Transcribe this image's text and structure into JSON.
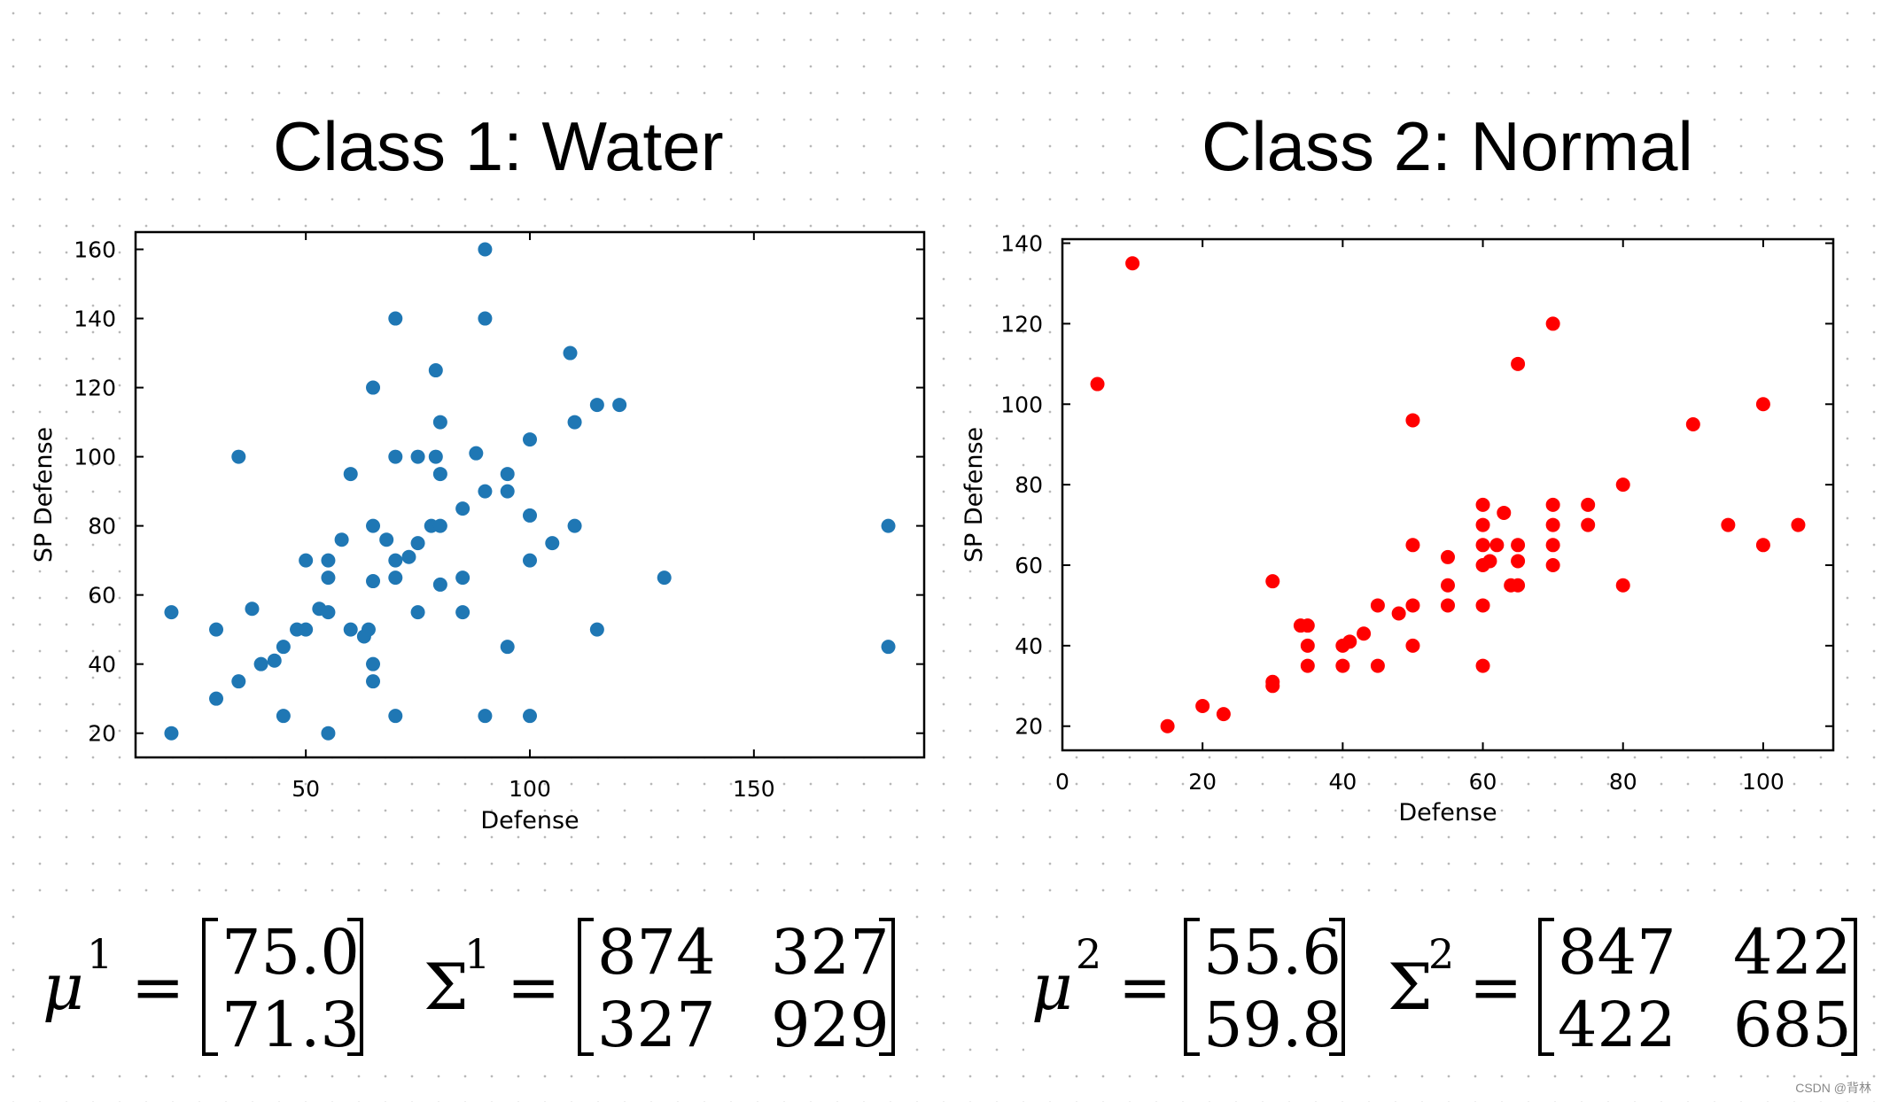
{
  "chart_data": [
    {
      "type": "scatter",
      "title": "Class 1: Water",
      "xlabel": "Defense",
      "ylabel": "SP Defense",
      "xlim": [
        12,
        188
      ],
      "ylim": [
        13,
        165
      ],
      "xticks": [
        50,
        100,
        150
      ],
      "yticks": [
        20,
        40,
        60,
        80,
        100,
        120,
        140,
        160
      ],
      "color": "#1f77b4",
      "grid": false,
      "points": [
        [
          20,
          55
        ],
        [
          20,
          20
        ],
        [
          30,
          50
        ],
        [
          30,
          30
        ],
        [
          35,
          100
        ],
        [
          35,
          35
        ],
        [
          38,
          56
        ],
        [
          40,
          40
        ],
        [
          43,
          41
        ],
        [
          45,
          45
        ],
        [
          45,
          25
        ],
        [
          48,
          50
        ],
        [
          50,
          70
        ],
        [
          50,
          50
        ],
        [
          53,
          56
        ],
        [
          55,
          70
        ],
        [
          55,
          65
        ],
        [
          55,
          55
        ],
        [
          55,
          20
        ],
        [
          58,
          76
        ],
        [
          60,
          95
        ],
        [
          60,
          50
        ],
        [
          63,
          48
        ],
        [
          64,
          50
        ],
        [
          65,
          120
        ],
        [
          65,
          80
        ],
        [
          65,
          64
        ],
        [
          65,
          40
        ],
        [
          65,
          35
        ],
        [
          68,
          76
        ],
        [
          70,
          140
        ],
        [
          70,
          100
        ],
        [
          70,
          70
        ],
        [
          70,
          65
        ],
        [
          70,
          25
        ],
        [
          73,
          71
        ],
        [
          75,
          100
        ],
        [
          75,
          75
        ],
        [
          75,
          55
        ],
        [
          78,
          80
        ],
        [
          79,
          125
        ],
        [
          79,
          100
        ],
        [
          80,
          110
        ],
        [
          80,
          95
        ],
        [
          80,
          80
        ],
        [
          80,
          63
        ],
        [
          85,
          85
        ],
        [
          85,
          65
        ],
        [
          85,
          55
        ],
        [
          88,
          101
        ],
        [
          90,
          160
        ],
        [
          90,
          140
        ],
        [
          90,
          90
        ],
        [
          90,
          25
        ],
        [
          95,
          95
        ],
        [
          95,
          90
        ],
        [
          95,
          45
        ],
        [
          100,
          105
        ],
        [
          100,
          83
        ],
        [
          100,
          70
        ],
        [
          100,
          25
        ],
        [
          105,
          75
        ],
        [
          109,
          130
        ],
        [
          110,
          110
        ],
        [
          110,
          80
        ],
        [
          115,
          115
        ],
        [
          115,
          50
        ],
        [
          120,
          115
        ],
        [
          130,
          65
        ],
        [
          180,
          80
        ],
        [
          180,
          45
        ]
      ]
    },
    {
      "type": "scatter",
      "title": "Class 2: Normal",
      "xlabel": "Defense",
      "ylabel": "SP Defense",
      "xlim": [
        0,
        110
      ],
      "ylim": [
        14,
        141
      ],
      "xticks": [
        0,
        20,
        40,
        60,
        80,
        100
      ],
      "yticks": [
        20,
        40,
        60,
        80,
        100,
        120,
        140
      ],
      "color": "#ff0000",
      "grid": false,
      "points": [
        [
          5,
          105
        ],
        [
          10,
          135
        ],
        [
          15,
          20
        ],
        [
          20,
          25
        ],
        [
          23,
          23
        ],
        [
          30,
          56
        ],
        [
          30,
          31
        ],
        [
          30,
          30
        ],
        [
          34,
          45
        ],
        [
          35,
          45
        ],
        [
          35,
          40
        ],
        [
          35,
          35
        ],
        [
          40,
          40
        ],
        [
          40,
          35
        ],
        [
          41,
          41
        ],
        [
          43,
          43
        ],
        [
          45,
          50
        ],
        [
          45,
          35
        ],
        [
          48,
          48
        ],
        [
          50,
          96
        ],
        [
          50,
          65
        ],
        [
          50,
          50
        ],
        [
          50,
          40
        ],
        [
          55,
          62
        ],
        [
          55,
          55
        ],
        [
          55,
          50
        ],
        [
          60,
          75
        ],
        [
          60,
          70
        ],
        [
          60,
          65
        ],
        [
          60,
          60
        ],
        [
          60,
          50
        ],
        [
          60,
          35
        ],
        [
          61,
          61
        ],
        [
          62,
          65
        ],
        [
          63,
          73
        ],
        [
          64,
          55
        ],
        [
          65,
          110
        ],
        [
          65,
          65
        ],
        [
          65,
          61
        ],
        [
          65,
          55
        ],
        [
          70,
          120
        ],
        [
          70,
          75
        ],
        [
          70,
          70
        ],
        [
          70,
          65
        ],
        [
          70,
          60
        ],
        [
          75,
          75
        ],
        [
          75,
          70
        ],
        [
          80,
          80
        ],
        [
          80,
          55
        ],
        [
          90,
          95
        ],
        [
          95,
          70
        ],
        [
          100,
          100
        ],
        [
          100,
          65
        ],
        [
          105,
          70
        ]
      ]
    }
  ],
  "equations": {
    "left": {
      "mu_symbol": "μ",
      "mu_sup": "1",
      "equals": "=",
      "mu_values": [
        "75.0",
        "71.3"
      ],
      "sigma_symbol": "Σ",
      "sigma_sup": "1",
      "sigma_values": [
        [
          "874",
          "327"
        ],
        [
          "327",
          "929"
        ]
      ]
    },
    "right": {
      "mu_symbol": "μ",
      "mu_sup": "2",
      "equals": "=",
      "mu_values": [
        "55.6",
        "59.8"
      ],
      "sigma_symbol": "Σ",
      "sigma_sup": "2",
      "sigma_values": [
        [
          "847",
          "422"
        ],
        [
          "422",
          "685"
        ]
      ]
    }
  },
  "footer": "CSDN @背林"
}
